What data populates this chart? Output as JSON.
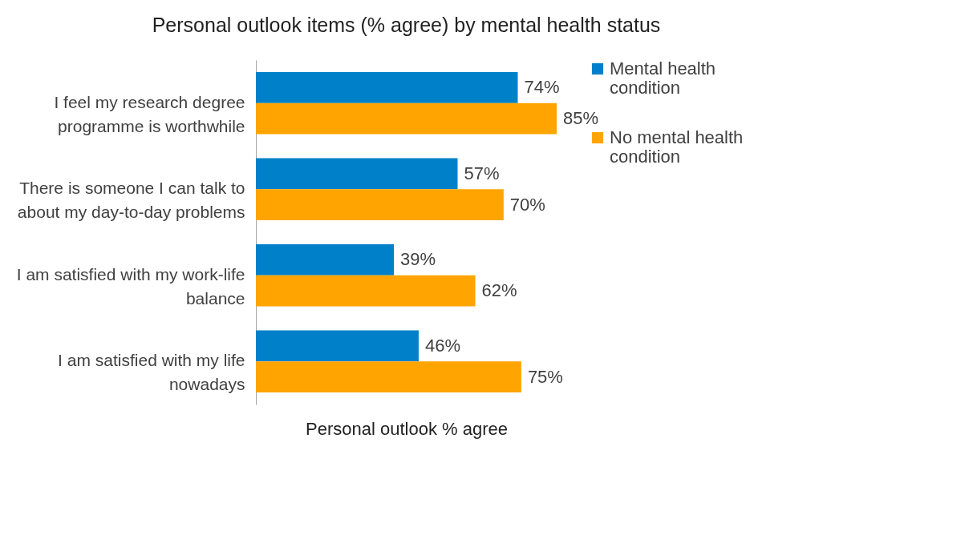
{
  "chart_data": {
    "type": "bar",
    "orientation": "horizontal",
    "relative": false,
    "title": "Personal outlook items (% agree) by mental health status",
    "xlabel": "Personal outlook % agree",
    "categories": [
      "I feel my research degree programme is worthwhile",
      "There is someone I can talk to about my day-to-day problems",
      "I am satisfied with my work-life balance",
      "I am satisfied with my life nowadays"
    ],
    "series": [
      {
        "name": "Mental health condition",
        "color": "#0080c9",
        "values": [
          74,
          57,
          39,
          46
        ],
        "value_labels": [
          "74%",
          "57%",
          "39%",
          "46%"
        ]
      },
      {
        "name": "No mental health condition",
        "color": "#ffa400",
        "values": [
          85,
          70,
          62,
          75
        ],
        "value_labels": [
          "85%",
          "70%",
          "62%",
          "75%"
        ]
      }
    ],
    "legend": "right",
    "grid": false
  }
}
